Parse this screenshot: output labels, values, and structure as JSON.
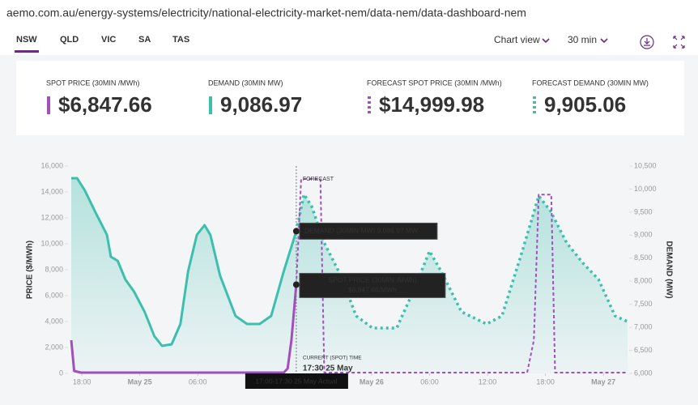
{
  "url": "aemo.com.au/energy-systems/electricity/national-electricity-market-nem/data-nem/data-dashboard-nem",
  "tabs": [
    "NSW",
    "QLD",
    "VIC",
    "SA",
    "TAS"
  ],
  "active_tab": "NSW",
  "controls": [
    "Chart view",
    "30 min"
  ],
  "cards": [
    {
      "label": "SPOT PRICE (30MIN /MWh)",
      "value": "$6,847.66",
      "color": "#a14fbf",
      "style": "solid"
    },
    {
      "label": "DEMAND (30MIN MW)",
      "value": "9,086.97",
      "color": "#3dbfae",
      "style": "solid"
    },
    {
      "label": "FORECAST SPOT PRICE (30MIN /MWh)",
      "value": "$14,999.98",
      "color": "#a14fbf",
      "style": "dotted"
    },
    {
      "label": "FORECAST DEMAND (30MIN MW)",
      "value": "9,905.06",
      "color": "#3dbfae",
      "style": "dotted"
    }
  ],
  "chart_data": {
    "type": "line",
    "y_label": "PRICE ($/MWh)",
    "y2_label": "DEMAND (MW)",
    "annotations": {
      "forecast": "FORECAST",
      "current_time": "CURRENT (SPOT) TIME",
      "current_time_value": "17:30 25 May",
      "demand_tooltip": "DEMAND (30MIN MW) 9,086.97 MW",
      "price_tooltip_label": "SPOT PRICE (30MIN /MWh)",
      "price_tooltip_value": "$6,847.66/MWh",
      "period": "17:00-17:30 25 May Actual"
    },
    "xlim": [
      16.9,
      74.5
    ],
    "xticks": [
      {
        "value": 18,
        "label": "18:00"
      },
      {
        "value": 24,
        "label": "May 25"
      },
      {
        "value": 30,
        "label": "06:00"
      },
      {
        "value": 48,
        "label": "May 26"
      },
      {
        "value": 54,
        "label": "06:00"
      },
      {
        "value": 60,
        "label": "12:00"
      },
      {
        "value": 66,
        "label": "18:00"
      },
      {
        "value": 72,
        "label": "May 27"
      }
    ],
    "ylim": [
      0,
      16000
    ],
    "yticks": [
      0,
      {
        "value": 2000,
        "label": "2,000"
      },
      {
        "value": 4000,
        "label": "4,000"
      },
      {
        "value": 6000,
        "label": "6,000"
      },
      {
        "value": 8000,
        "label": "8,000"
      },
      {
        "value": 10000,
        "label": "10,000"
      },
      {
        "value": 12000,
        "label": "12,000"
      },
      {
        "value": 14000,
        "label": "14,000"
      },
      {
        "value": 16000,
        "label": "16,000"
      }
    ],
    "y2lim": [
      6000,
      10500
    ],
    "y2ticks": [
      {
        "value": 6000,
        "label": "6,000"
      },
      {
        "value": 6500,
        "label": "6,500"
      },
      {
        "value": 7000,
        "label": "7,000"
      },
      {
        "value": 7500,
        "label": "7,500"
      },
      {
        "value": 8000,
        "label": "8,000"
      },
      {
        "value": 8500,
        "label": "8,500"
      },
      {
        "value": 9000,
        "label": "9,000"
      },
      {
        "value": 9500,
        "label": "9,500"
      },
      {
        "value": 10000,
        "label": "10,000"
      },
      {
        "value": 10500,
        "label": "10,500"
      }
    ],
    "series": [
      {
        "color": "#3dbfae",
        "style": "solid",
        "axis": "y2",
        "fill": true,
        "x": [
          16.9,
          17.5,
          18.3,
          19.4,
          20.6,
          21.0,
          21.7,
          22.5,
          23.4,
          24.5,
          25.5,
          26.3,
          27.3,
          28.2,
          29.0,
          29.9,
          30.7,
          31.3,
          32.3,
          33.9,
          35.1,
          36.4,
          37.6,
          38.9,
          40.2
        ],
        "values": [
          10237,
          10237,
          9973,
          9498,
          9006,
          8532,
          8444,
          8039,
          7776,
          7336,
          6809,
          6598,
          6633,
          7072,
          8215,
          9006,
          9217,
          9006,
          8127,
          7248,
          7072,
          7072,
          7248,
          8215,
          9087
        ]
      },
      {
        "color": "#3dbfae",
        "style": "dotted",
        "axis": "y2",
        "fill": true,
        "x": [
          40.2,
          41.0,
          41.8,
          43.1,
          44.8,
          46.4,
          48.1,
          50.6,
          52.3,
          54.0,
          55.2,
          57.3,
          59.9,
          61.5,
          63.6,
          65.3,
          66.5,
          68.2,
          69.9,
          71.5,
          73.2,
          74.5
        ],
        "values": [
          9087,
          9885,
          9621,
          8830,
          8127,
          7248,
          6985,
          6985,
          7776,
          8655,
          8215,
          7336,
          7072,
          7248,
          8655,
          9850,
          9534,
          8830,
          8391,
          8039,
          7248,
          7125
        ]
      },
      {
        "color": "#a14fbf",
        "style": "solid",
        "axis": "y",
        "fill": false,
        "x": [
          16.9,
          17.2,
          17.9,
          24.0,
          30.0,
          36.0,
          38.9,
          39.3,
          39.7,
          40.2
        ],
        "values": [
          2560,
          190,
          60,
          60,
          60,
          60,
          60,
          375,
          2560,
          6848
        ]
      },
      {
        "color": "#a14fbf",
        "style": "dashed",
        "axis": "y",
        "fill": false,
        "x": [
          40.2,
          40.7,
          42.7,
          43.1,
          64.1,
          64.8,
          65.3,
          66.6,
          67.0,
          74.5
        ],
        "values": [
          6848,
          15000,
          15000,
          60,
          60,
          2560,
          13800,
          13800,
          60,
          60
        ]
      }
    ]
  }
}
